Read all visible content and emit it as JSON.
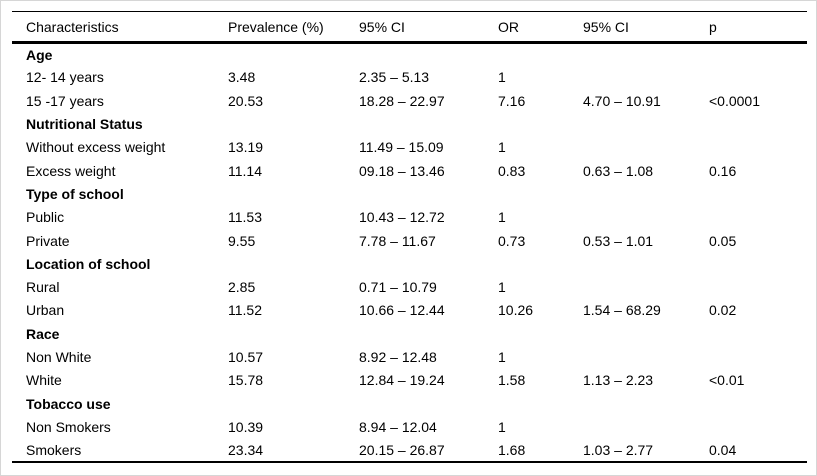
{
  "table": {
    "columns": [
      "Characteristics",
      "Prevalence (%)",
      "95% CI",
      "OR",
      "95% CI",
      "p"
    ],
    "rows": [
      {
        "type": "section",
        "cells": [
          "Age",
          "",
          "",
          "",
          "",
          ""
        ]
      },
      {
        "type": "data",
        "cells": [
          "12- 14 years",
          "3.48",
          "2.35 – 5.13",
          "1",
          "",
          ""
        ]
      },
      {
        "type": "data",
        "cells": [
          "15 -17 years",
          "20.53",
          "18.28 – 22.97",
          "7.16",
          "4.70 – 10.91",
          "<0.0001"
        ]
      },
      {
        "type": "section",
        "cells": [
          "Nutritional Status",
          "",
          "",
          "",
          "",
          ""
        ]
      },
      {
        "type": "data",
        "cells": [
          "Without excess weight",
          "13.19",
          "11.49 – 15.09",
          "1",
          "",
          ""
        ]
      },
      {
        "type": "data",
        "cells": [
          "Excess weight",
          "11.14",
          "09.18 – 13.46",
          "0.83",
          "0.63 – 1.08",
          "0.16"
        ]
      },
      {
        "type": "section",
        "cells": [
          "Type of school",
          "",
          "",
          "",
          "",
          ""
        ]
      },
      {
        "type": "data",
        "cells": [
          "Public",
          "11.53",
          "10.43 – 12.72",
          "1",
          "",
          ""
        ]
      },
      {
        "type": "data",
        "cells": [
          "Private",
          "9.55",
          "7.78 – 11.67",
          "0.73",
          "0.53 – 1.01",
          "0.05"
        ]
      },
      {
        "type": "section",
        "cells": [
          "Location of school",
          "",
          "",
          "",
          "",
          ""
        ]
      },
      {
        "type": "data",
        "cells": [
          "Rural",
          "2.85",
          "0.71 – 10.79",
          "1",
          "",
          ""
        ]
      },
      {
        "type": "data",
        "cells": [
          "Urban",
          "11.52",
          "10.66 – 12.44",
          "10.26",
          "1.54 – 68.29",
          "0.02"
        ]
      },
      {
        "type": "section",
        "cells": [
          "Race",
          "",
          "",
          "",
          "",
          ""
        ]
      },
      {
        "type": "data",
        "cells": [
          "Non White",
          "10.57",
          "8.92 – 12.48",
          "1",
          "",
          ""
        ]
      },
      {
        "type": "data",
        "cells": [
          "White",
          "15.78",
          "12.84 – 19.24",
          "1.58",
          "1.13 – 2.23",
          "<0.01"
        ]
      },
      {
        "type": "section",
        "cells": [
          "Tobacco use",
          "",
          "",
          "",
          "",
          ""
        ]
      },
      {
        "type": "data",
        "cells": [
          "Non Smokers",
          "10.39",
          "8.94 – 12.04",
          "1",
          "",
          ""
        ]
      },
      {
        "type": "data",
        "cells": [
          "Smokers",
          "23.34",
          "20.15 – 26.87",
          "1.68",
          "1.03 – 2.77",
          "0.04"
        ]
      }
    ]
  }
}
